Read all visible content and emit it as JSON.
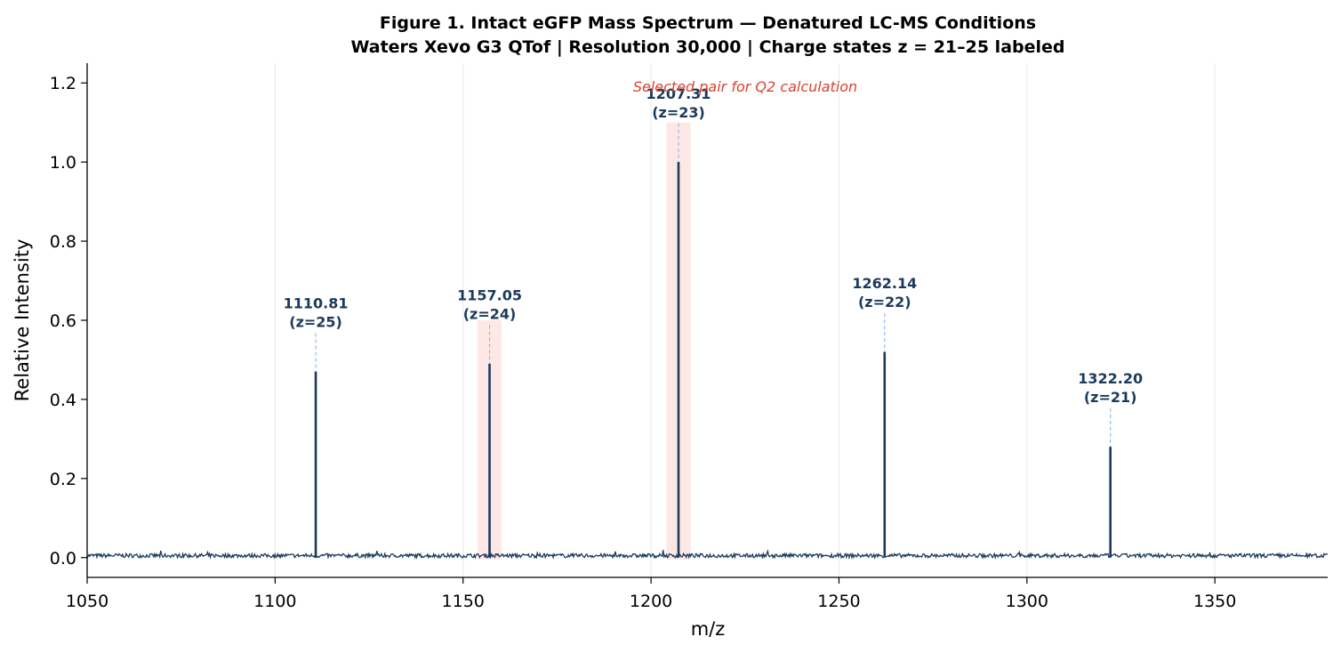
{
  "chart_data": {
    "type": "line",
    "title": "Figure 1.  Intact eGFP Mass Spectrum — Denatured LC-MS Conditions",
    "subtitle": "Waters Xevo G3 QTof  |  Resolution 30,000  |  Charge states z = 21–25 labeled",
    "xlabel": "m/z",
    "ylabel": "Relative Intensity",
    "xlim": [
      1050,
      1380
    ],
    "ylim": [
      -0.05,
      1.25
    ],
    "x_ticks": [
      "1050",
      "1100",
      "1150",
      "1200",
      "1250",
      "1300",
      "1350"
    ],
    "x_tick_values": [
      1050,
      1100,
      1150,
      1200,
      1250,
      1300,
      1350
    ],
    "y_ticks": [
      "0.0",
      "0.2",
      "0.4",
      "0.6",
      "0.8",
      "1.0",
      "1.2"
    ],
    "y_tick_values": [
      0.0,
      0.2,
      0.4,
      0.6,
      0.8,
      1.0,
      1.2
    ],
    "grid": "vertical",
    "line_color": "#1b3a5c",
    "highlight_color": "#fde2df",
    "annotation_color": "#d9432f",
    "baseline_noise": 0.01,
    "peaks": [
      {
        "mz": 1110.81,
        "intensity": 0.47,
        "label": "1110.81",
        "charge": "(z=25)"
      },
      {
        "mz": 1157.05,
        "intensity": 0.49,
        "label": "1157.05",
        "charge": "(z=24)"
      },
      {
        "mz": 1207.31,
        "intensity": 1.0,
        "label": "1207.31",
        "charge": "(z=23)"
      },
      {
        "mz": 1262.14,
        "intensity": 0.52,
        "label": "1262.14",
        "charge": "(z=22)"
      },
      {
        "mz": 1322.2,
        "intensity": 0.28,
        "label": "1322.20",
        "charge": "(z=21)"
      }
    ],
    "highlighted_peaks": [
      1157.05,
      1207.31
    ],
    "highlight_half_width": 3.2,
    "annotation": "Selected pair for Q2 calculation"
  }
}
